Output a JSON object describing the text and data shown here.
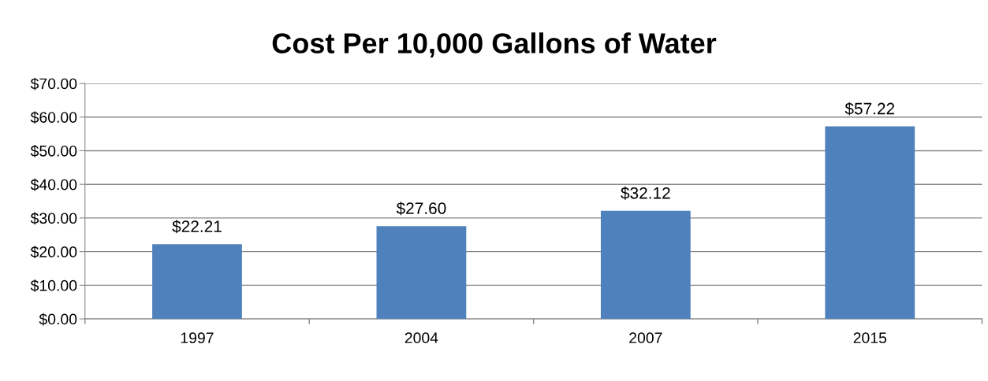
{
  "chart_data": {
    "type": "bar",
    "title": "Cost Per 10,000 Gallons of Water",
    "categories": [
      "1997",
      "2004",
      "2007",
      "2015"
    ],
    "values": [
      22.21,
      27.6,
      32.12,
      57.22
    ],
    "value_labels": [
      "$22.21",
      "$27.60",
      "$32.12",
      "$57.22"
    ],
    "color": "#4f81bd",
    "ylim": [
      0,
      70
    ],
    "yticks": [
      {
        "value": 0,
        "label": "$0.00"
      },
      {
        "value": 10,
        "label": "$10.00"
      },
      {
        "value": 20,
        "label": "$20.00"
      },
      {
        "value": 30,
        "label": "$30.00"
      },
      {
        "value": 40,
        "label": "$40.00"
      },
      {
        "value": 50,
        "label": "$50.00"
      },
      {
        "value": 60,
        "label": "$60.00"
      },
      {
        "value": 70,
        "label": "$70.00"
      }
    ],
    "grid": "y"
  }
}
